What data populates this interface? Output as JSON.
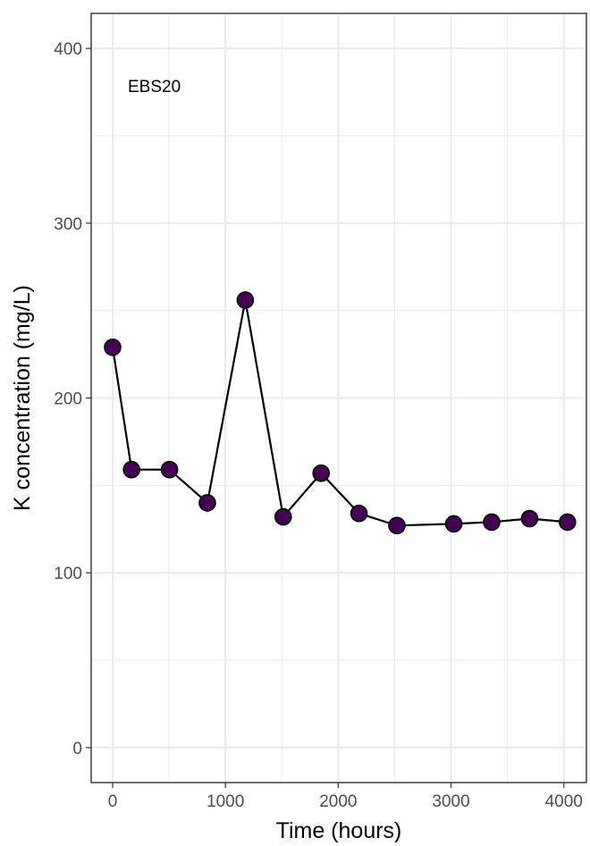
{
  "chart_data": {
    "type": "line",
    "xlabel": "Time (hours)",
    "ylabel": "K concentration (mg/L)",
    "annotation": "EBS20",
    "xlim": [
      -190,
      4200
    ],
    "ylim": [
      -20,
      420
    ],
    "xticks": [
      0,
      1000,
      2000,
      3000,
      4000
    ],
    "yticks": [
      0,
      100,
      200,
      300,
      400
    ],
    "grid": true,
    "series": [
      {
        "x": [
          0,
          168,
          504,
          840,
          1176,
          1512,
          1848,
          2184,
          2520,
          3024,
          3360,
          3696,
          4032
        ],
        "y": [
          229,
          159,
          159,
          140,
          256,
          132,
          157,
          134,
          127,
          128,
          129,
          131,
          129
        ]
      }
    ],
    "colors": {
      "point_fill": "#440154",
      "point_stroke": "#000000",
      "line": "#000000",
      "grid": "#ebebeb",
      "panel_border": "#333333"
    }
  }
}
